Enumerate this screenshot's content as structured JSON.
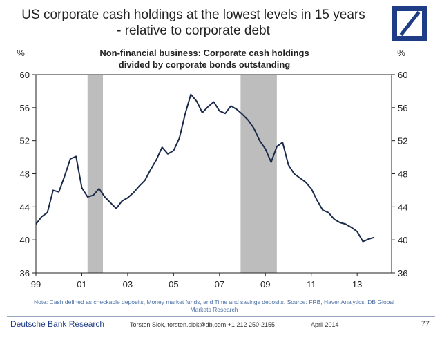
{
  "header": {
    "title_line1": "US corporate cash holdings at the lowest levels in 15 years",
    "title_line2": "- relative to corporate debt"
  },
  "logo": {
    "icon": "deutsche-bank-logo",
    "color": "#1f3d86"
  },
  "chart_data": {
    "type": "line",
    "title_line1": "Non-financial business: Corporate cash holdings",
    "title_line2": "divided by corporate bonds outstanding",
    "y_unit_left": "%",
    "y_unit_right": "%",
    "ylim": [
      36,
      60
    ],
    "yticks": [
      "60",
      "56",
      "52",
      "48",
      "44",
      "40",
      "36"
    ],
    "xlim": [
      1999,
      2014.5
    ],
    "xticks": [
      "99",
      "01",
      "03",
      "05",
      "07",
      "09",
      "11",
      "13"
    ],
    "grid": false,
    "line_color": "#1a2a4a",
    "shade_color": "#bdbdbd",
    "recessions": [
      [
        2001.25,
        2001.92
      ],
      [
        2007.92,
        2009.5
      ]
    ],
    "series": [
      {
        "x": [
          1999.0,
          1999.25,
          1999.5,
          1999.75,
          2000.0,
          2000.25,
          2000.5,
          2000.75,
          2001.0,
          2001.25,
          2001.5,
          2001.75,
          2002.0,
          2002.25,
          2002.5,
          2002.75,
          2003.0,
          2003.25,
          2003.5,
          2003.75,
          2004.0,
          2004.25,
          2004.5,
          2004.75,
          2005.0,
          2005.25,
          2005.5,
          2005.75,
          2006.0,
          2006.25,
          2006.5,
          2006.75,
          2007.0,
          2007.25,
          2007.5,
          2007.75,
          2008.0,
          2008.25,
          2008.5,
          2008.75,
          2009.0,
          2009.25,
          2009.5,
          2009.75,
          2010.0,
          2010.25,
          2010.5,
          2010.75,
          2011.0,
          2011.25,
          2011.5,
          2011.75,
          2012.0,
          2012.25,
          2012.5,
          2012.75,
          2013.0,
          2013.25,
          2013.5,
          2013.75
        ],
        "values": [
          41.9,
          42.8,
          43.3,
          46.0,
          45.8,
          47.7,
          49.8,
          50.1,
          46.3,
          45.2,
          45.4,
          46.2,
          45.2,
          44.5,
          43.8,
          44.7,
          45.1,
          45.7,
          46.5,
          47.2,
          48.5,
          49.7,
          51.2,
          50.4,
          50.8,
          52.3,
          55.2,
          57.6,
          56.8,
          55.4,
          56.1,
          56.7,
          55.6,
          55.3,
          56.2,
          55.8,
          55.2,
          54.5,
          53.5,
          52.0,
          51.0,
          49.4,
          51.3,
          51.8,
          49.1,
          48.0,
          47.5,
          47.0,
          46.2,
          44.8,
          43.6,
          43.3,
          42.5,
          42.1,
          41.9,
          41.5,
          41.0,
          39.8,
          40.1,
          40.3
        ]
      }
    ]
  },
  "note": "Note: Cash defined as checkable deposits, Money market funds, and Time and savings deposits. Source: FRB, Haver Analytics, DB Global Markets Research",
  "footer": {
    "brand": "Deutsche Bank Research",
    "author": "Torsten Slok, torsten.slok@db.com  +1 212 250-2155",
    "date": "April 2014",
    "page": "77"
  }
}
